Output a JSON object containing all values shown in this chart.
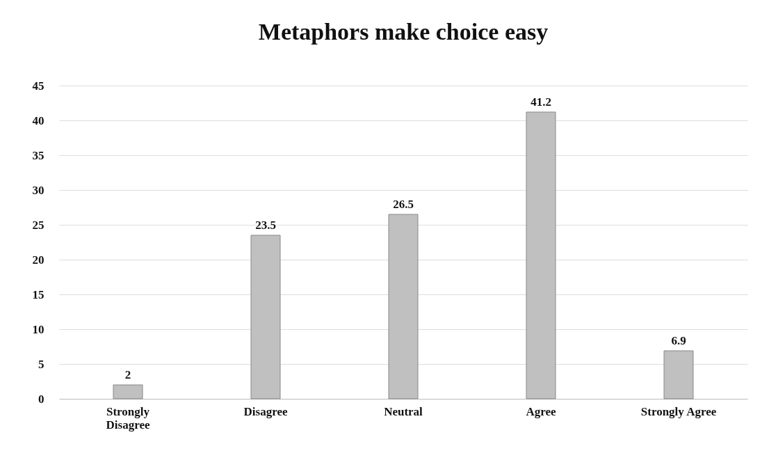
{
  "chart_data": {
    "type": "bar",
    "title": "Metaphors make choice easy",
    "categories": [
      "Strongly Disagree",
      "Disagree",
      "Neutral",
      "Agree",
      "Strongly Agree"
    ],
    "values": [
      2,
      23.5,
      26.5,
      41.2,
      6.9
    ],
    "color": "#c0c0c0",
    "ylim": [
      0,
      45
    ],
    "yticks": [
      0,
      5,
      10,
      15,
      20,
      25,
      30,
      35,
      40,
      45
    ],
    "grid": "y",
    "data_labels": true
  }
}
